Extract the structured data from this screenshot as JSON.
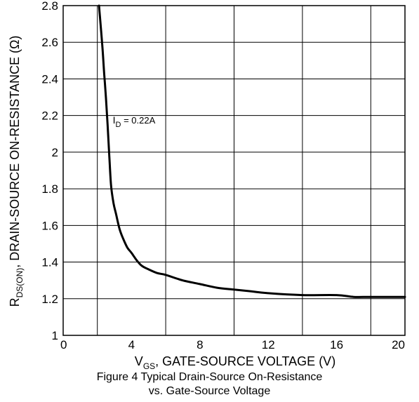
{
  "chart_data": {
    "type": "line",
    "xlabel": {
      "main": "V",
      "sub": "GS",
      "rest": ", GATE-SOURCE VOLTAGE (V)"
    },
    "ylabel": {
      "main": "R",
      "sub": "DS(ON)",
      "rest": ", DRAIN-SOURCE ON-RESISTANCE (Ω)"
    },
    "xlim": [
      0,
      20
    ],
    "ylim": [
      1,
      2.8
    ],
    "xticks": [
      0,
      4,
      8,
      12,
      16,
      20
    ],
    "xtick_labels": [
      "0",
      "4",
      "8",
      "12",
      "16",
      "20"
    ],
    "yticks": [
      1,
      1.2,
      1.4,
      1.6,
      1.8,
      2,
      2.2,
      2.4,
      2.6,
      2.8
    ],
    "ytick_labels": [
      "1",
      "1.2",
      "1.4",
      "1.6",
      "1.8",
      "2",
      "2.2",
      "2.4",
      "2.6",
      "2.8"
    ],
    "x_grid": [
      0,
      2,
      6,
      10,
      14,
      18,
      20
    ],
    "grid": true,
    "series": [
      {
        "x": [
          2.1,
          2.15,
          2.3,
          2.4,
          2.5,
          2.6,
          2.7,
          2.8,
          2.95,
          3.1,
          3.3,
          3.5,
          3.75,
          4.0,
          4.3,
          4.6,
          5.0,
          5.5,
          6.0,
          7.0,
          8.0,
          9.0,
          10.0,
          11.0,
          12.0,
          14.0,
          16.0,
          17.0,
          18.0,
          20.0
        ],
        "y": [
          2.8,
          2.74,
          2.57,
          2.43,
          2.3,
          2.15,
          1.98,
          1.82,
          1.72,
          1.66,
          1.58,
          1.53,
          1.48,
          1.45,
          1.41,
          1.38,
          1.36,
          1.34,
          1.33,
          1.3,
          1.28,
          1.26,
          1.25,
          1.24,
          1.23,
          1.22,
          1.22,
          1.21,
          1.21,
          1.21
        ]
      }
    ],
    "annotation": {
      "main": "I",
      "sub": "D",
      "rest": " = 0.22A",
      "x": 2.9,
      "y": 2.1
    }
  },
  "caption": {
    "line1": "Figure 4 Typical Drain-Source On-Resistance",
    "line2": "vs. Gate-Source Voltage"
  }
}
